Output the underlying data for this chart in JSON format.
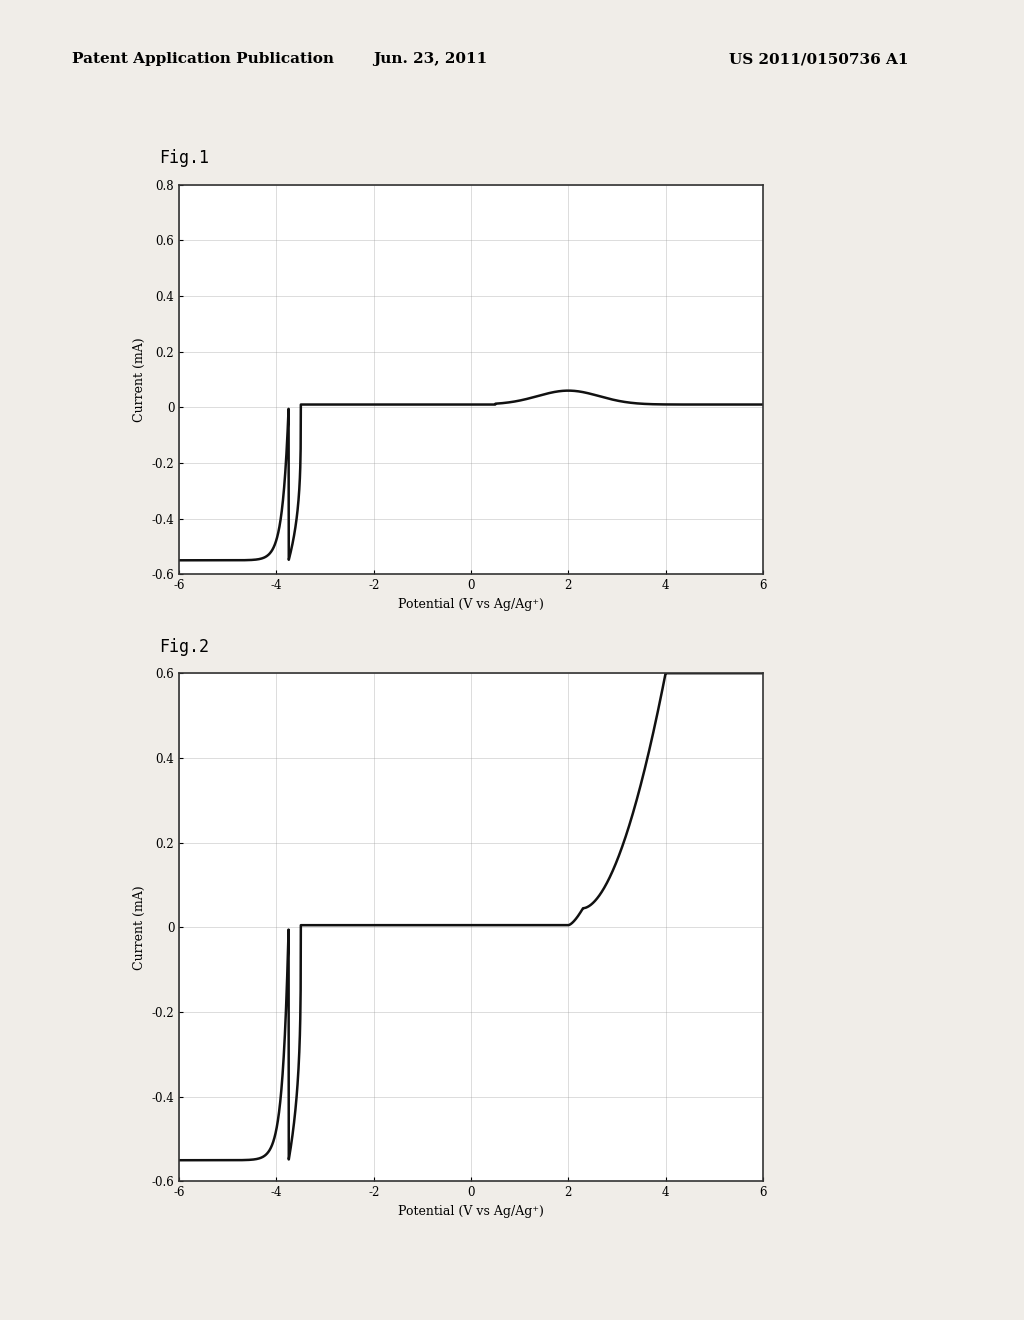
{
  "background_color": "#ffffff",
  "page_bg": "#f0ede8",
  "header_left": "Patent Application Publication",
  "header_center": "Jun. 23, 2011",
  "header_right": "US 2011/0150736 A1",
  "fig1_label": "Fig.1",
  "fig2_label": "Fig.2",
  "xlabel": "Potential (V vs Ag/Ag⁺)",
  "ylabel": "Current (mA)",
  "xlim": [
    -6,
    6
  ],
  "ylim1": [
    -0.6,
    0.8
  ],
  "ylim2": [
    -0.6,
    0.6
  ],
  "xticks": [
    -6,
    -4,
    -2,
    0,
    2,
    4,
    6
  ],
  "xtick_labels": [
    "-6",
    "-4",
    "-2",
    "0",
    "2",
    "4",
    "6"
  ],
  "yticks1": [
    -0.6,
    -0.4,
    -0.2,
    0,
    0.2,
    0.4,
    0.6,
    0.8
  ],
  "ytick_labels1": [
    "-0.6",
    "-0.4",
    "-0.2",
    "0",
    "0.2",
    "0.4",
    "0.6",
    "0.8"
  ],
  "yticks2": [
    -0.6,
    -0.4,
    -0.2,
    0,
    0.2,
    0.4,
    0.6
  ],
  "ytick_labels2": [
    "-0.6",
    "-0.4",
    "-0.2",
    "0",
    "0.2",
    "0.4",
    "0.6"
  ],
  "line_color": "#111111",
  "line_width": 1.8,
  "grid_color": "#999999",
  "border_color": "#333333"
}
